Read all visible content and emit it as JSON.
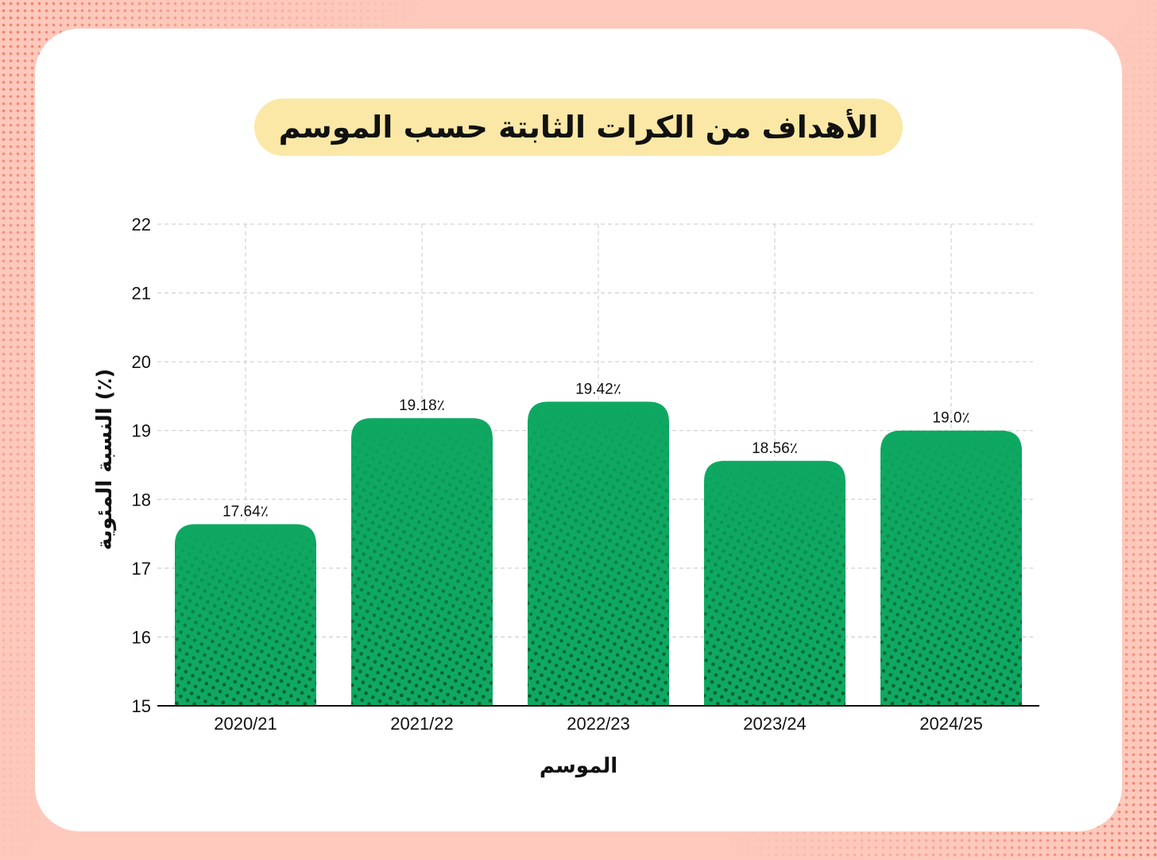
{
  "title": "الأهداف من الكرات الثابتة حسب الموسم",
  "colors": {
    "bar": "#0fa862",
    "bar_dots": "#055a2b",
    "card": "#ffffff",
    "background": "#fdc9bc",
    "title_pill": "#fbe8a6"
  },
  "chart_data": {
    "type": "bar",
    "title": "الأهداف من الكرات الثابتة حسب الموسم",
    "xlabel": "الموسم",
    "ylabel": "النسبة المئوية (٪)",
    "categories": [
      "2020/21",
      "2021/22",
      "2022/23",
      "2023/24",
      "2024/25"
    ],
    "values": [
      17.64,
      19.18,
      19.42,
      18.56,
      19.0
    ],
    "value_labels": [
      "17.64٪",
      "19.18٪",
      "19.42٪",
      "18.56٪",
      "19.0٪"
    ],
    "ylim": [
      15,
      22
    ],
    "yticks": [
      15,
      16,
      17,
      18,
      19,
      20,
      21,
      22
    ],
    "grid": true
  }
}
